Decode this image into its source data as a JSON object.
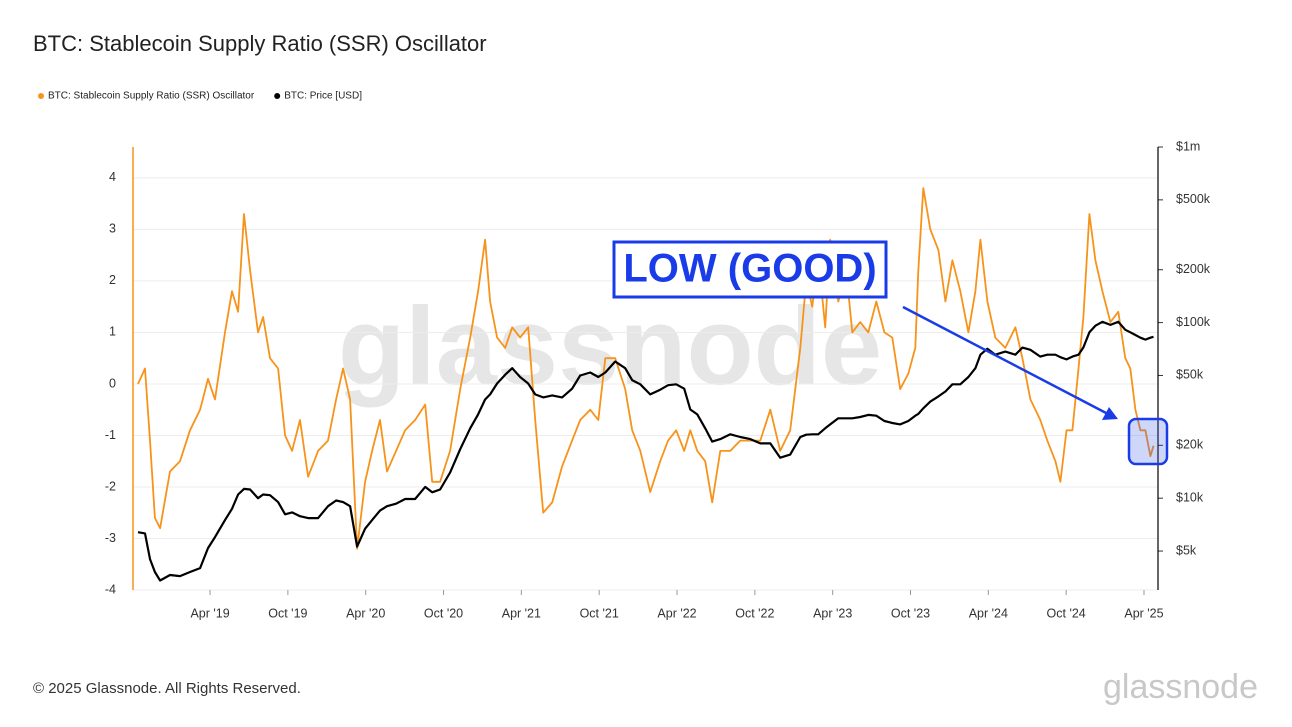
{
  "chart_data": {
    "type": "line",
    "title": "BTC: Stablecoin Supply Ratio (SSR) Oscillator",
    "watermark": "glassnode",
    "annotation": "LOW (GOOD)",
    "copyright": "© 2025 Glassnode. All Rights Reserved.",
    "logo": "glassnode",
    "grid": true,
    "y2log": true,
    "xlim": [
      2018.755,
      2025.34
    ],
    "xticks": [
      {
        "value": 2019.25,
        "label": "Apr '19"
      },
      {
        "value": 2019.75,
        "label": "Oct '19"
      },
      {
        "value": 2020.25,
        "label": "Apr '20"
      },
      {
        "value": 2020.75,
        "label": "Oct '20"
      },
      {
        "value": 2021.25,
        "label": "Apr '21"
      },
      {
        "value": 2021.75,
        "label": "Oct '21"
      },
      {
        "value": 2022.25,
        "label": "Apr '22"
      },
      {
        "value": 2022.75,
        "label": "Oct '22"
      },
      {
        "value": 2023.25,
        "label": "Apr '23"
      },
      {
        "value": 2023.75,
        "label": "Oct '23"
      },
      {
        "value": 2024.25,
        "label": "Apr '24"
      },
      {
        "value": 2024.75,
        "label": "Oct '24"
      },
      {
        "value": 2025.25,
        "label": "Apr '25"
      }
    ],
    "ylim": [
      -4,
      4.6
    ],
    "yticks": [
      -4,
      -3,
      -2,
      -1,
      0,
      1,
      2,
      3,
      4
    ],
    "y2lim": [
      3000,
      1000000
    ],
    "y2ticks": [
      {
        "value": 5000,
        "label": "$5k"
      },
      {
        "value": 10000,
        "label": "$10k"
      },
      {
        "value": 20000,
        "label": "$20k"
      },
      {
        "value": 50000,
        "label": "$50k"
      },
      {
        "value": 100000,
        "label": "$100k"
      },
      {
        "value": 200000,
        "label": "$200k"
      },
      {
        "value": 500000,
        "label": "$500k"
      },
      {
        "value": 1000000,
        "label": "$1m"
      }
    ],
    "x": [
      2018.787,
      2018.832,
      2018.864,
      2018.896,
      2018.929,
      2018.993,
      2019.057,
      2019.121,
      2019.186,
      2019.237,
      2019.282,
      2019.346,
      2019.391,
      2019.43,
      2019.468,
      2019.507,
      2019.558,
      2019.591,
      2019.635,
      2019.687,
      2019.732,
      2019.777,
      2019.828,
      2019.88,
      2019.944,
      2020.008,
      2020.06,
      2020.105,
      2020.15,
      2020.195,
      2020.246,
      2020.291,
      2020.342,
      2020.387,
      2020.445,
      2020.503,
      2020.567,
      2020.632,
      2020.677,
      2020.728,
      2020.792,
      2020.857,
      2020.921,
      2020.972,
      2021.017,
      2021.049,
      2021.094,
      2021.146,
      2021.191,
      2021.242,
      2021.294,
      2021.339,
      2021.39,
      2021.448,
      2021.512,
      2021.576,
      2021.628,
      2021.692,
      2021.744,
      2021.789,
      2021.853,
      2021.917,
      2021.962,
      2022.014,
      2022.078,
      2022.142,
      2022.193,
      2022.245,
      2022.296,
      2022.335,
      2022.38,
      2022.431,
      2022.476,
      2022.528,
      2022.592,
      2022.656,
      2022.721,
      2022.785,
      2022.849,
      2022.913,
      2022.977,
      2023.042,
      2023.08,
      2023.119,
      2023.157,
      2023.202,
      2023.234,
      2023.286,
      2023.337,
      2023.376,
      2023.427,
      2023.479,
      2023.53,
      2023.582,
      2023.633,
      2023.684,
      2023.736,
      2023.781,
      2023.8,
      2023.832,
      2023.877,
      2023.929,
      2023.974,
      2024.019,
      2024.07,
      2024.122,
      2024.167,
      2024.199,
      2024.244,
      2024.295,
      2024.359,
      2024.424,
      2024.469,
      2024.52,
      2024.584,
      2024.629,
      2024.681,
      2024.713,
      2024.752,
      2024.79,
      2024.829,
      2024.861,
      2024.899,
      2024.938,
      2024.983,
      2025.034,
      2025.085,
      2025.13,
      2025.162,
      2025.195,
      2025.227,
      2025.259,
      2025.291,
      2025.311
    ],
    "series": [
      {
        "name": "BTC: Stablecoin Supply Ratio (SSR) Oscillator",
        "color": "#f7931a",
        "values": [
          0.0,
          0.3,
          -1.1,
          -2.6,
          -2.8,
          -1.7,
          -1.5,
          -0.9,
          -0.5,
          0.1,
          -0.3,
          1.0,
          1.8,
          1.4,
          3.3,
          2.2,
          1.0,
          1.3,
          0.5,
          0.3,
          -1.0,
          -1.3,
          -0.7,
          -1.8,
          -1.3,
          -1.1,
          -0.3,
          0.3,
          -0.3,
          -3.2,
          -1.9,
          -1.3,
          -0.7,
          -1.7,
          -1.3,
          -0.9,
          -0.7,
          -0.4,
          -1.9,
          -1.9,
          -1.3,
          -0.1,
          0.9,
          1.8,
          2.8,
          1.6,
          0.9,
          0.7,
          1.1,
          0.9,
          1.1,
          -0.7,
          -2.5,
          -2.3,
          -1.6,
          -1.1,
          -0.7,
          -0.5,
          -0.7,
          0.5,
          0.5,
          -0.1,
          -0.9,
          -1.3,
          -2.1,
          -1.5,
          -1.1,
          -0.9,
          -1.3,
          -0.9,
          -1.3,
          -1.5,
          -2.3,
          -1.3,
          -1.3,
          -1.1,
          -1.1,
          -1.1,
          -0.5,
          -1.3,
          -0.9,
          0.7,
          2.0,
          1.5,
          2.5,
          1.1,
          2.8,
          1.6,
          2.2,
          1.0,
          1.2,
          1.0,
          1.6,
          1.0,
          0.9,
          -0.1,
          0.2,
          0.7,
          2.2,
          3.8,
          3.0,
          2.6,
          1.6,
          2.4,
          1.8,
          1.0,
          1.8,
          2.8,
          1.6,
          0.9,
          0.7,
          1.1,
          0.5,
          -0.3,
          -0.7,
          -1.1,
          -1.5,
          -1.9,
          -0.9,
          -0.9,
          0.3,
          1.3,
          3.3,
          2.4,
          1.8,
          1.2,
          1.4,
          0.5,
          0.3,
          -0.5,
          -0.9,
          -0.9,
          -1.4,
          -1.2
        ]
      },
      {
        "name": "BTC: Price [USD]",
        "color": "#000000",
        "axis": "y2",
        "values": [
          6400,
          6300,
          4500,
          3800,
          3400,
          3650,
          3600,
          3800,
          4000,
          5200,
          6000,
          7500,
          8700,
          10500,
          11300,
          11200,
          10000,
          10500,
          10400,
          9500,
          8100,
          8300,
          7900,
          7700,
          7700,
          9000,
          9700,
          9500,
          9000,
          5300,
          6700,
          7500,
          8500,
          9000,
          9300,
          9900,
          9900,
          11600,
          10800,
          11200,
          14000,
          19000,
          25000,
          30000,
          36500,
          39000,
          45000,
          50500,
          55000,
          49000,
          45000,
          39000,
          37500,
          38500,
          37500,
          42000,
          50000,
          52000,
          49000,
          52000,
          60000,
          55000,
          47000,
          44500,
          39000,
          41500,
          44000,
          44500,
          42000,
          32000,
          30000,
          25000,
          21000,
          21700,
          23100,
          22300,
          21700,
          20500,
          20500,
          17000,
          17700,
          22300,
          23000,
          23100,
          23100,
          25000,
          26300,
          28500,
          28500,
          28500,
          29000,
          29800,
          29500,
          27500,
          26800,
          26300,
          27500,
          29500,
          30200,
          32500,
          35500,
          38000,
          40500,
          44500,
          44500,
          49000,
          55000,
          65600,
          71000,
          65600,
          68400,
          65600,
          72000,
          70000,
          64000,
          65600,
          65600,
          63500,
          61700,
          64000,
          65600,
          72200,
          88000,
          96000,
          101000,
          97000,
          101000,
          91000,
          88000,
          85000,
          82000,
          80000,
          82000,
          83000
        ]
      }
    ]
  }
}
